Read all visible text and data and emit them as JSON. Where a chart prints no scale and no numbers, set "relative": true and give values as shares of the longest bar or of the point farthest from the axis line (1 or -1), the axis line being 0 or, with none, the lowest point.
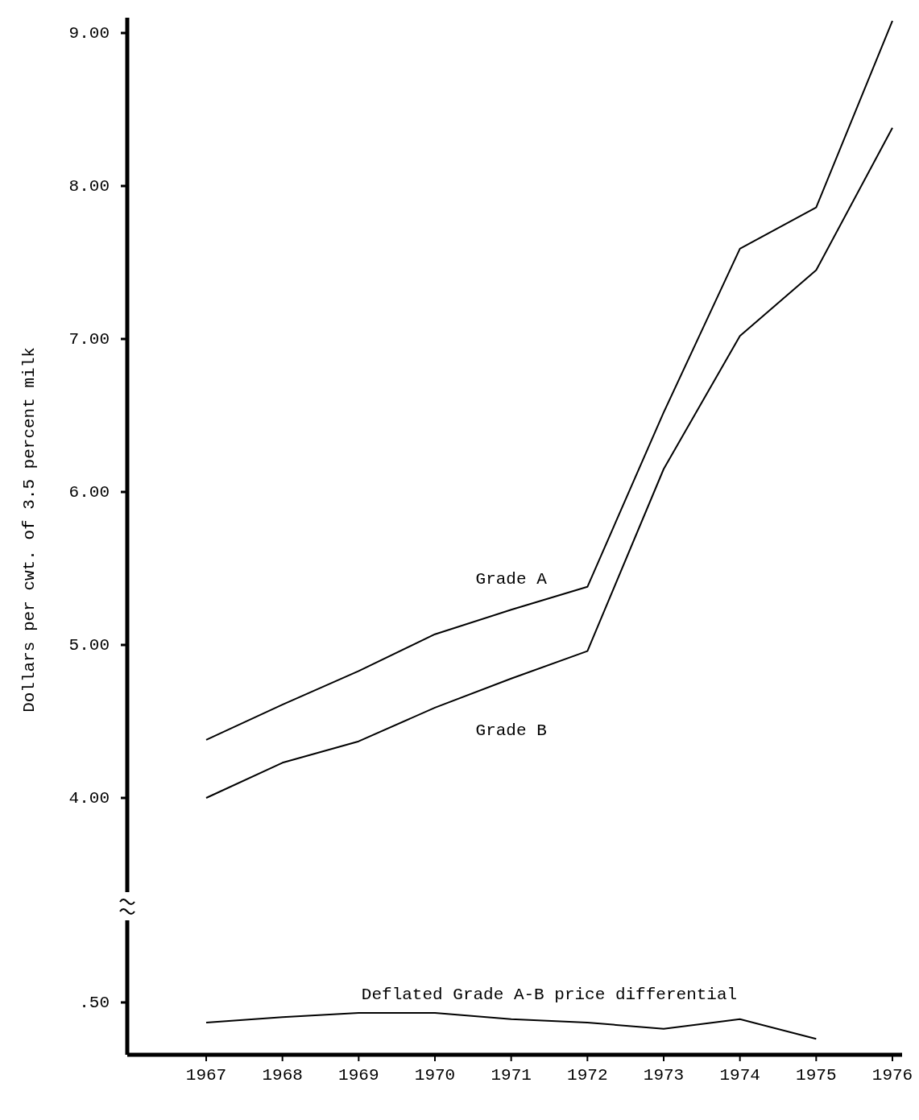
{
  "chart_data": [
    {
      "type": "line",
      "ylabel": "Dollars per cwt. of 3.5 percent milk",
      "ylim": [
        3.4,
        9.1
      ],
      "yticks": [
        {
          "value": 4,
          "label": "4.00"
        },
        {
          "value": 5,
          "label": "5.00"
        },
        {
          "value": 6,
          "label": "6.00"
        },
        {
          "value": 7,
          "label": "7.00"
        },
        {
          "value": 8,
          "label": "8.00"
        },
        {
          "value": 9,
          "label": "9.00"
        }
      ],
      "tick_labels": "y",
      "legend": false,
      "series": [
        {
          "name": "Grade A",
          "color": "#000000",
          "values": [
            4.38,
            4.61,
            4.83,
            5.07,
            5.23,
            5.38,
            6.52,
            7.59,
            7.86,
            9.08
          ]
        },
        {
          "name": "Grade B",
          "color": "#000000",
          "values": [
            4.0,
            4.23,
            4.37,
            4.59,
            4.78,
            4.96,
            6.15,
            7.02,
            7.45,
            8.38
          ]
        }
      ]
    },
    {
      "type": "line",
      "relative": true,
      "categories": [
        "1967",
        "1968",
        "1969",
        "1970",
        "1971",
        "1972",
        "1973",
        "1974",
        "1975",
        "1976"
      ],
      "annotations": [
        ".50"
      ],
      "legend": false,
      "series": [
        {
          "name": "Deflated Grade A-B price differential",
          "color": "#000000",
          "values": [
            0.77,
            0.9,
            1,
            1,
            0.85,
            0.77,
            0.62,
            0.85,
            0.38,
            null
          ]
        }
      ]
    }
  ]
}
